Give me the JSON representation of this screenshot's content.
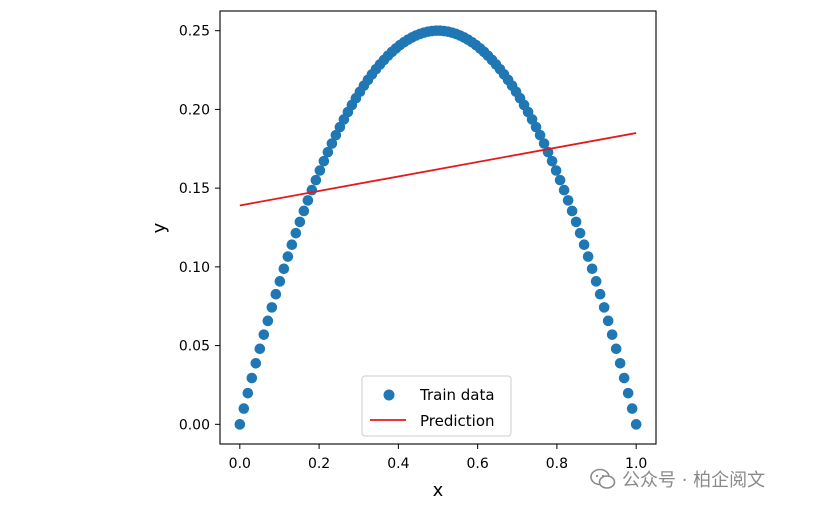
{
  "chart_data": {
    "type": "scatter",
    "title": "",
    "xlabel": "x",
    "ylabel": "y",
    "xlim": [
      -0.05,
      1.05
    ],
    "ylim": [
      -0.0125,
      0.2625
    ],
    "xticks": [
      "0.0",
      "0.2",
      "0.4",
      "0.6",
      "0.8",
      "1.0"
    ],
    "yticks": [
      "0.00",
      "0.05",
      "0.10",
      "0.15",
      "0.20",
      "0.25"
    ],
    "grid": false,
    "legend_position": "bottom-center",
    "series": [
      {
        "name": "Train data",
        "kind": "scatter",
        "color": "#1f77b4",
        "formula": "y = x * (1 - x)",
        "x_start": 0.0,
        "x_end": 1.0,
        "points": 100
      },
      {
        "name": "Prediction",
        "kind": "line",
        "color": "#e41a1c",
        "x": [
          0.0,
          1.0
        ],
        "y": [
          0.139,
          0.185
        ]
      }
    ]
  },
  "watermark": {
    "text": "公众号 · 柏企阅文",
    "icon": "wechat-logo"
  }
}
